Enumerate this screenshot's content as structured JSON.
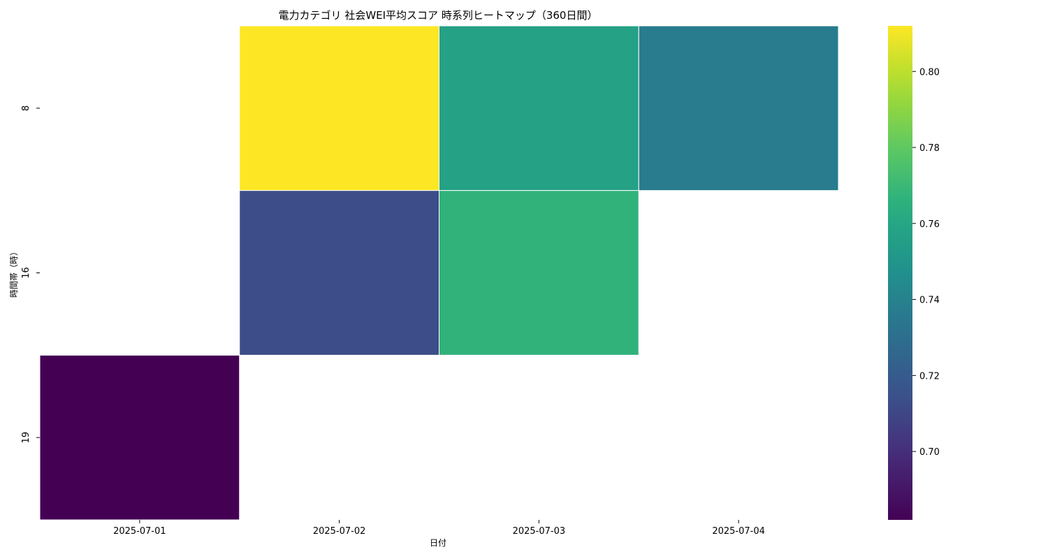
{
  "chart_data": {
    "type": "heatmap",
    "title": "電力カテゴリ 社会WEI平均スコア 時系列ヒートマップ（360日間）",
    "xlabel": "日付",
    "ylabel": "時間帯（時）",
    "x_categories": [
      "2025-07-01",
      "2025-07-02",
      "2025-07-03",
      "2025-07-04"
    ],
    "y_categories": [
      "8",
      "16",
      "19"
    ],
    "values": [
      [
        null,
        0.812,
        0.757,
        0.737
      ],
      [
        null,
        0.713,
        0.767,
        null
      ],
      [
        0.682,
        null,
        null,
        null
      ]
    ],
    "colorbar": {
      "min": 0.682,
      "max": 0.812,
      "ticks": [
        "0.70",
        "0.72",
        "0.74",
        "0.76",
        "0.78",
        "0.80"
      ],
      "colormap": "viridis"
    }
  }
}
